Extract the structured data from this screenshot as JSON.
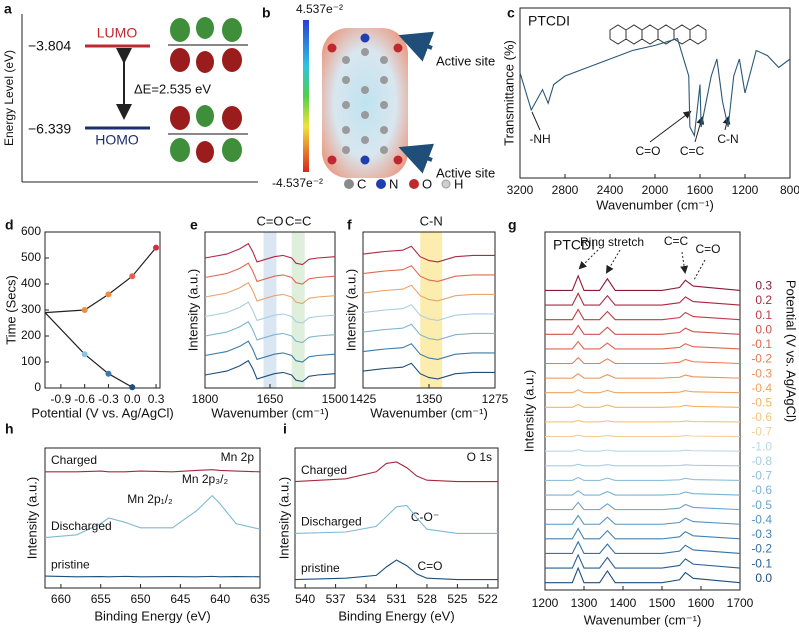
{
  "diagram_a": {
    "label": "a",
    "y_label": "Energy Level (eV)",
    "lumo_energy": "−3.804",
    "lumo": "LUMO",
    "homo_energy": "−6.339",
    "homo": "HOMO",
    "gap": "ΔE=2.535 eV"
  },
  "diagram_b": {
    "label": "b",
    "scale_max": "4.537e⁻²",
    "scale_min": "-4.537e⁻²",
    "annotations": [
      "Active site",
      "Active site"
    ],
    "legend": [
      "C",
      "N",
      "O",
      "H"
    ]
  },
  "chart_data": [
    {
      "type": "line",
      "label": "c",
      "title": "PTCDI",
      "x_label": "Wavenumber (cm⁻¹)",
      "y_label": "Transmittance (%)",
      "xlim": [
        3200,
        800
      ],
      "xticks": [
        3200,
        2800,
        2400,
        2000,
        1600,
        1200,
        800
      ],
      "ylim": [
        0,
        100
      ],
      "x": [
        3200,
        3100,
        3000,
        2950,
        2900,
        2800,
        2600,
        2400,
        2200,
        2000,
        1800,
        1700,
        1690,
        1650,
        1600,
        1590,
        1500,
        1450,
        1400,
        1350,
        1300,
        1250,
        1200,
        1100,
        1000,
        900,
        800
      ],
      "series": [
        {
          "color": "#2b5876",
          "values": [
            62,
            40,
            52,
            44,
            55,
            60,
            65,
            70,
            75,
            78,
            82,
            60,
            30,
            25,
            55,
            30,
            60,
            70,
            45,
            30,
            60,
            70,
            50,
            75,
            72,
            65,
            70
          ]
        }
      ],
      "annotations": [
        "-NH",
        "C=O",
        "C=C",
        "C-N"
      ]
    },
    {
      "type": "line",
      "label": "d",
      "x_label": "Potential (V vs. Ag/AgCl)",
      "y_label": "Time (Secs)",
      "xlim": [
        -1.1,
        0.35
      ],
      "xticks": [
        -0.9,
        -0.6,
        -0.3,
        {
          "value": 0,
          "label": "0.0"
        },
        0.3
      ],
      "ylim": [
        0,
        600
      ],
      "yticks": [
        0,
        100,
        200,
        300,
        400,
        500,
        600
      ],
      "series": [
        {
          "color": "#222222",
          "x": [
            -1.1,
            -0.6,
            -0.3,
            0,
            0.3
          ],
          "values": [
            290,
            300,
            360,
            430,
            540
          ],
          "marker_colors": [
            null,
            "#f08c3c",
            "#f08c3c",
            "#e8604c",
            "#d03040"
          ]
        },
        {
          "color": "#222222",
          "x": [
            -1.1,
            -0.6,
            -0.3,
            0
          ],
          "values": [
            290,
            130,
            55,
            3
          ],
          "marker_colors": [
            null,
            "#8bc4e0",
            "#3a78b0",
            "#1d4e7e"
          ]
        }
      ]
    },
    {
      "type": "line",
      "label": "e",
      "x_label": "Wavenumber (cm⁻¹)",
      "y_label": "Intensity (a.u.)",
      "xlim": [
        1800,
        1500
      ],
      "xticks": [
        1800,
        1650,
        1500
      ],
      "ylim": [
        -0.5,
        11.5
      ],
      "bands": [
        [
          1665,
          1635
        ],
        [
          1600,
          1570
        ]
      ],
      "band_colors": [
        "#d3e3f1",
        "#d8ecd6"
      ],
      "annotations": [
        "C=O",
        "C=C"
      ],
      "x": [
        1800,
        1750,
        1720,
        1700,
        1690,
        1680,
        1660,
        1640,
        1620,
        1600,
        1590,
        1575,
        1560,
        1540,
        1500
      ],
      "series": [
        {
          "color": "#1f4e79",
          "values": [
            0.5,
            0.8,
            1.2,
            1.6,
            1.0,
            0.2,
            0.4,
            0.6,
            0.7,
            0.5,
            0.1,
            0.0,
            0.4,
            0.5,
            0.6
          ]
        },
        {
          "color": "#3d7ba6",
          "values": [
            2.0,
            2.3,
            2.7,
            3.1,
            2.5,
            1.7,
            1.9,
            2.1,
            2.2,
            2.0,
            1.6,
            1.5,
            1.9,
            2.0,
            2.1
          ]
        },
        {
          "color": "#7fb4d0",
          "values": [
            3.5,
            3.8,
            4.2,
            4.6,
            4.0,
            3.2,
            3.4,
            3.6,
            3.7,
            3.5,
            3.1,
            3.0,
            3.4,
            3.5,
            3.6
          ]
        },
        {
          "color": "#a9cfe0",
          "values": [
            5.0,
            5.3,
            5.7,
            6.1,
            5.5,
            4.7,
            4.9,
            5.1,
            5.2,
            5.0,
            4.6,
            4.5,
            4.9,
            5.0,
            5.1
          ]
        },
        {
          "color": "#e8a56e",
          "values": [
            6.5,
            6.8,
            7.2,
            7.6,
            7.0,
            6.2,
            6.4,
            6.6,
            6.7,
            6.5,
            6.1,
            6.0,
            6.4,
            6.5,
            6.6
          ]
        },
        {
          "color": "#dd6a55",
          "values": [
            8.0,
            8.3,
            8.7,
            9.1,
            8.5,
            7.7,
            7.9,
            8.1,
            8.2,
            8.0,
            7.6,
            7.5,
            7.9,
            8.0,
            8.1
          ]
        },
        {
          "color": "#b02843",
          "values": [
            9.5,
            9.8,
            10.2,
            10.6,
            10.0,
            9.2,
            9.4,
            9.6,
            9.7,
            9.5,
            9.1,
            9.0,
            9.4,
            9.5,
            9.6
          ]
        }
      ]
    },
    {
      "type": "line",
      "label": "f",
      "x_label": "Wavenumber (cm⁻¹)",
      "y_label": "Intensity (a.u.)",
      "xlim": [
        1425,
        1275
      ],
      "xticks": [
        1425,
        1350,
        1275
      ],
      "ylim": [
        -0.5,
        11.5
      ],
      "bands": [
        [
          1360,
          1335
        ]
      ],
      "band_colors": [
        "#fbeaa0"
      ],
      "annotations": [
        "C-N"
      ],
      "x": [
        1425,
        1400,
        1380,
        1370,
        1360,
        1350,
        1340,
        1330,
        1320,
        1300,
        1275
      ],
      "series": [
        {
          "color": "#1f4e79",
          "values": [
            0.8,
            1.0,
            1.1,
            1.4,
            0.6,
            0.3,
            0.2,
            0.4,
            0.6,
            0.7,
            0.7
          ]
        },
        {
          "color": "#3d7ba6",
          "values": [
            2.3,
            2.5,
            2.6,
            2.9,
            2.1,
            1.8,
            1.7,
            1.9,
            2.1,
            2.2,
            2.2
          ]
        },
        {
          "color": "#7fb4d0",
          "values": [
            3.8,
            4.0,
            4.1,
            4.4,
            3.6,
            3.3,
            3.2,
            3.4,
            3.6,
            3.7,
            3.7
          ]
        },
        {
          "color": "#a9cfe0",
          "values": [
            5.3,
            5.5,
            5.6,
            5.9,
            5.1,
            4.8,
            4.7,
            4.9,
            5.1,
            5.2,
            5.2
          ]
        },
        {
          "color": "#e8a56e",
          "values": [
            6.8,
            7.0,
            7.1,
            7.4,
            6.6,
            6.3,
            6.2,
            6.4,
            6.6,
            6.7,
            6.7
          ]
        },
        {
          "color": "#dd6a55",
          "values": [
            8.3,
            8.5,
            8.6,
            8.9,
            8.1,
            7.8,
            7.7,
            7.9,
            8.1,
            8.2,
            8.2
          ]
        },
        {
          "color": "#b02843",
          "values": [
            9.8,
            10.0,
            10.1,
            10.4,
            9.6,
            9.3,
            9.2,
            9.4,
            9.6,
            9.7,
            9.7
          ]
        }
      ]
    },
    {
      "type": "line",
      "label": "g",
      "title": "PTCDI",
      "x_label": "Wavenumber (cm⁻¹)",
      "y_label": "Intensity (a.u.)",
      "y_label_right": "Potential (V vs. Ag/AgCl)",
      "xlim": [
        1200,
        1700
      ],
      "xticks": [
        1200,
        1300,
        1400,
        1500,
        1600,
        1700
      ],
      "ylim": [
        -0.5,
        24
      ],
      "annotations": [
        "Ring stretch",
        "C=C",
        "C=O"
      ],
      "x": [
        1200,
        1270,
        1285,
        1300,
        1340,
        1360,
        1380,
        1500,
        1545,
        1560,
        1580,
        1700
      ],
      "series": [
        {
          "name": "0.3",
          "color": "#8b1a3a",
          "values": [
            20,
            20,
            21,
            20,
            20,
            20.8,
            20,
            20,
            20.2,
            20.7,
            20.3,
            20
          ]
        },
        {
          "name": "0.2",
          "color": "#a8283f",
          "values": [
            19,
            19,
            19.8,
            19,
            19,
            19.64,
            19,
            19,
            19.16,
            19.56,
            19.24,
            19
          ]
        },
        {
          "name": "0.1",
          "color": "#c23b45",
          "values": [
            18,
            18,
            18.7,
            18,
            18,
            18.56,
            18,
            18,
            18.14,
            18.49,
            18.21,
            18
          ]
        },
        {
          "name": "0.0",
          "color": "#d4504b",
          "values": [
            17,
            17,
            17.6,
            17,
            17,
            17.48,
            17,
            17,
            17.12,
            17.42,
            17.18,
            17
          ]
        },
        {
          "name": "-0.1",
          "color": "#e06650",
          "values": [
            16,
            16,
            16.5,
            16,
            16,
            16.4,
            16,
            16,
            16.1,
            16.35,
            16.15,
            16
          ]
        },
        {
          "name": "-0.2",
          "color": "#e87b55",
          "values": [
            15,
            15,
            15.4,
            15,
            15,
            15.32,
            15,
            15,
            15.08,
            15.28,
            15.12,
            15
          ]
        },
        {
          "name": "-0.3",
          "color": "#ee9058",
          "values": [
            14,
            14,
            14.3,
            14,
            14,
            14.24,
            14,
            14,
            14.06,
            14.21,
            14.09,
            14
          ]
        },
        {
          "name": "-0.4",
          "color": "#f2a35c",
          "values": [
            13,
            13,
            13.2,
            13,
            13,
            13.16,
            13,
            13,
            13.04,
            13.14,
            13.06,
            13
          ]
        },
        {
          "name": "-0.5",
          "color": "#f5b462",
          "values": [
            12,
            12,
            12.2,
            12,
            12,
            12.16,
            12,
            12,
            12.04,
            12.14,
            12.06,
            12
          ]
        },
        {
          "name": "-0.6",
          "color": "#f7c37a",
          "values": [
            11,
            11,
            11.1,
            11,
            11,
            11.08,
            11,
            11,
            11.02,
            11.07,
            11.03,
            11
          ]
        },
        {
          "name": "-0.7",
          "color": "#f2cf98",
          "values": [
            10,
            10,
            10.1,
            10,
            10,
            10.08,
            10,
            10,
            10.02,
            10.07,
            10.03,
            10
          ]
        },
        {
          "name": "-1.0",
          "color": "#b9d9e8",
          "values": [
            9,
            9,
            9.1,
            9,
            9,
            9.08,
            9,
            9,
            9.02,
            9.07,
            9.03,
            9
          ]
        },
        {
          "name": "-0.8",
          "color": "#a3cde3",
          "values": [
            8,
            8,
            8.1,
            8,
            8,
            8.08,
            8,
            8,
            8.02,
            8.07,
            8.03,
            8
          ]
        },
        {
          "name": "-0.7",
          "color": "#8fc0dc",
          "values": [
            7,
            7,
            7.2,
            7,
            7,
            7.16,
            7,
            7,
            7.04,
            7.14,
            7.06,
            7
          ]
        },
        {
          "name": "-0.6",
          "color": "#7ab2d4",
          "values": [
            6,
            6,
            6.3,
            6,
            6,
            6.24,
            6,
            6,
            6.06,
            6.21,
            6.09,
            6
          ]
        },
        {
          "name": "-0.5",
          "color": "#66a3cb",
          "values": [
            5,
            5,
            5.5,
            5,
            5,
            5.4,
            5,
            5,
            5.1,
            5.35,
            5.15,
            5
          ]
        },
        {
          "name": "-0.4",
          "color": "#5393c0",
          "values": [
            4,
            4,
            4.6,
            4,
            4,
            4.48,
            4,
            4,
            4.12,
            4.42,
            4.18,
            4
          ]
        },
        {
          "name": "-0.3",
          "color": "#4282b3",
          "values": [
            3,
            3,
            3.7,
            3,
            3,
            3.56,
            3,
            3,
            3.14,
            3.49,
            3.21,
            3
          ]
        },
        {
          "name": "-0.2",
          "color": "#3471a4",
          "values": [
            2,
            2,
            2.8,
            2,
            2,
            2.64,
            2,
            2,
            2.16,
            2.56,
            2.24,
            2
          ]
        },
        {
          "name": "-0.1",
          "color": "#285f92",
          "values": [
            1,
            1,
            1.9,
            1,
            1,
            1.72,
            1,
            1,
            1.18,
            1.63,
            1.27,
            1
          ]
        },
        {
          "name": "0.0",
          "color": "#1d4e7e",
          "values": [
            0,
            0,
            1,
            0,
            0,
            0.8,
            0,
            0,
            0.2,
            0.7,
            0.3,
            0
          ]
        }
      ]
    },
    {
      "type": "line",
      "label": "h",
      "x_label": "Binding Energy (eV)",
      "y_label": "Intensity (a.u.)",
      "xlim": [
        662,
        635
      ],
      "xticks": [
        660,
        655,
        650,
        645,
        640,
        635
      ],
      "ylim": [
        0,
        10
      ],
      "annotations": [
        "Mn 2p",
        "Mn 2p₁/₂",
        "Mn 2p₃/₂"
      ],
      "x": [
        662,
        658,
        655,
        654,
        652,
        650,
        646,
        643,
        641,
        640,
        638,
        635
      ],
      "series": [
        {
          "name": "Charged",
          "color": "#a8283f",
          "values": [
            8.3,
            8.3,
            8.35,
            8.3,
            8.3,
            8.35,
            8.3,
            8.4,
            8.45,
            8.4,
            8.35,
            8.3
          ]
        },
        {
          "name": "Discharged",
          "color": "#7fb9d6",
          "values": [
            3.6,
            3.8,
            4.6,
            5.0,
            4.7,
            4.3,
            4.3,
            5.5,
            6.6,
            6.0,
            4.6,
            4.2
          ]
        },
        {
          "name": "pristine",
          "color": "#1d4e7e",
          "values": [
            0.85,
            0.8,
            0.82,
            0.8,
            0.83,
            0.8,
            0.82,
            0.8,
            0.83,
            0.8,
            0.82,
            0.8
          ]
        }
      ]
    },
    {
      "type": "line",
      "label": "i",
      "x_label": "Binding Energy (eV)",
      "y_label": "Intensity (a.u.)",
      "xlim": [
        541,
        521
      ],
      "xticks": [
        540,
        537,
        534,
        531,
        528,
        525,
        522
      ],
      "ylim": [
        0,
        10
      ],
      "annotations": [
        "O 1s",
        "C-O⁻",
        "C=O"
      ],
      "x": [
        541,
        536,
        533,
        532,
        531,
        530,
        529,
        528,
        525,
        521
      ],
      "series": [
        {
          "name": "Charged",
          "color": "#a8283f",
          "values": [
            7.6,
            7.8,
            8.3,
            8.9,
            9.0,
            8.6,
            8.0,
            7.7,
            7.6,
            7.6
          ]
        },
        {
          "name": "Discharged",
          "color": "#7fb9d6",
          "values": [
            3.9,
            4.0,
            4.4,
            5.1,
            5.8,
            5.9,
            5.0,
            4.2,
            3.9,
            3.9
          ]
        },
        {
          "name": "pristine",
          "color": "#1d4e7e",
          "values": [
            0.6,
            0.7,
            0.9,
            1.5,
            2.0,
            1.6,
            1.0,
            0.7,
            0.6,
            0.6
          ]
        }
      ]
    }
  ]
}
